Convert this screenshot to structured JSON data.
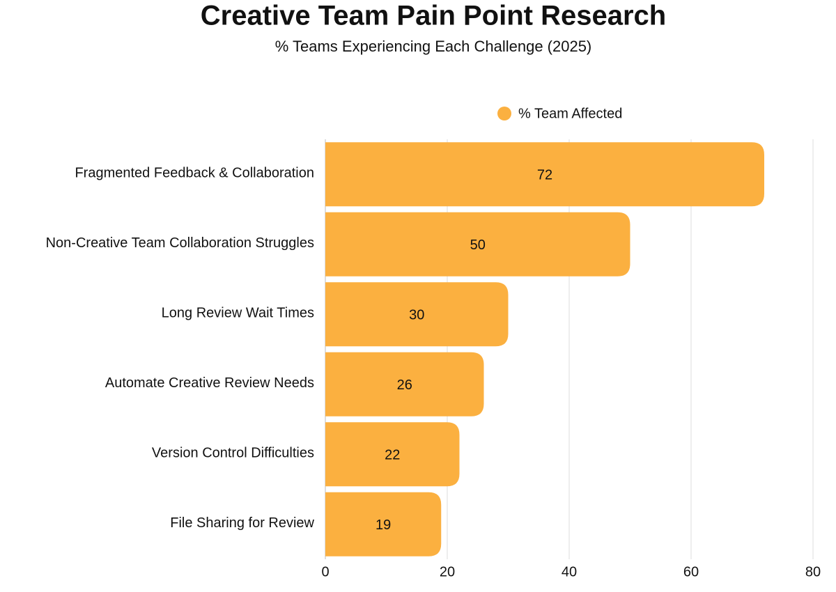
{
  "chart_data": {
    "type": "bar",
    "orientation": "horizontal",
    "title": "Creative Team Pain Point Research",
    "subtitle": "% Teams Experiencing Each Challenge (2025)",
    "categories": [
      "Fragmented Feedback & Collaboration",
      "Non-Creative Team Collaboration Struggles",
      "Long Review Wait Times",
      "Automate Creative Review Needs",
      "Version Control Difficulties",
      "File Sharing for Review"
    ],
    "series": [
      {
        "name": "% Team Affected",
        "color": "#fbb040",
        "values": [
          72,
          50,
          30,
          26,
          22,
          19
        ]
      }
    ],
    "xlim": [
      0,
      80
    ],
    "xticks": [
      0,
      20,
      40,
      60,
      80
    ],
    "grid": true
  }
}
